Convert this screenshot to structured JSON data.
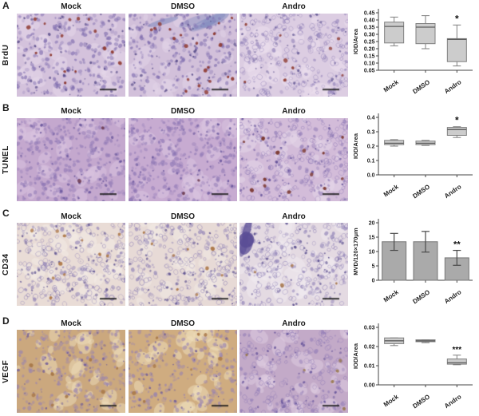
{
  "figure": {
    "panels": [
      {
        "letter": "A",
        "row_label": "BrdU",
        "columns": [
          "Mock",
          "DMSO",
          "Andro"
        ],
        "images": [
          {
            "bg": "#d4c2dc",
            "patch": "#e6d8ea",
            "nucleus": "#7e6cae",
            "dark": "#4f4383",
            "accent": "#8f3a32",
            "accents": 16,
            "density": 260,
            "ring": false,
            "streaks": false,
            "blob": ""
          },
          {
            "bg": "#d2c0da",
            "patch": "#e2d4e7",
            "nucleus": "#7a68ac",
            "dark": "#4a3f80",
            "accent": "#8f3a32",
            "accents": 21,
            "density": 260,
            "ring": false,
            "streaks": true,
            "blob": ""
          },
          {
            "bg": "#dccde2",
            "patch": "#ebe0ee",
            "nucleus": "#8b7bb5",
            "dark": "#5a4f8e",
            "accent": "#93443c",
            "accents": 9,
            "density": 250,
            "ring": true,
            "streaks": false,
            "blob": ""
          }
        ]
      },
      {
        "letter": "B",
        "row_label": "TUNEL",
        "columns": [
          "Mock",
          "DMSO",
          "Andro"
        ],
        "images": [
          {
            "bg": "#c4a8ce",
            "patch": "#d9c4df",
            "nucleus": "#8d76b4",
            "dark": "#5e4c96",
            "accent": "#6d3b50",
            "accents": 2,
            "density": 340,
            "ring": false,
            "streaks": false,
            "blob": ""
          },
          {
            "bg": "#c7abd1",
            "patch": "#dbc7e1",
            "nucleus": "#8d76b4",
            "dark": "#5e4c96",
            "accent": "#6d3b50",
            "accents": 2,
            "density": 340,
            "ring": false,
            "streaks": false,
            "blob": ""
          },
          {
            "bg": "#d3bcd9",
            "patch": "#e6d8e9",
            "nucleus": "#8f7ab6",
            "dark": "#5f4d97",
            "accent": "#7c3a33",
            "accents": 13,
            "density": 300,
            "ring": true,
            "streaks": false,
            "blob": ""
          }
        ]
      },
      {
        "letter": "C",
        "row_label": "CD34",
        "columns": [
          "Mock",
          "DMSO",
          "Andro"
        ],
        "images": [
          {
            "bg": "#e9dcd6",
            "patch": "#f4ece6",
            "nucleus": "#8678b2",
            "dark": "#564a8c",
            "accent": "#b07c4e",
            "accents": 11,
            "density": 280,
            "ring": true,
            "streaks": false,
            "blob": ""
          },
          {
            "bg": "#e7dad6",
            "patch": "#f2eae3",
            "nucleus": "#8678b2",
            "dark": "#564a8c",
            "accent": "#ad7a4c",
            "accents": 9,
            "density": 280,
            "ring": true,
            "streaks": false,
            "blob": ""
          },
          {
            "bg": "#e4dae2",
            "patch": "#f0e9ef",
            "nucleus": "#8a7cb4",
            "dark": "#4a3e85",
            "accent": "#a8784e",
            "accents": 4,
            "density": 280,
            "ring": true,
            "streaks": false,
            "blob": "#5a4d95"
          }
        ]
      },
      {
        "letter": "D",
        "row_label": "VEGF",
        "columns": [
          "Mock",
          "DMSO",
          "Andro"
        ],
        "images": [
          {
            "bg": "#cba87e",
            "patch": "#eedebc",
            "nucleus": "#9580b2",
            "dark": "#6b5898",
            "accent": "#a87848",
            "accents": 8,
            "density": 240,
            "ring": false,
            "streaks": false,
            "blob": ""
          },
          {
            "bg": "#cfac80",
            "patch": "#f0e0be",
            "nucleus": "#9580b2",
            "dark": "#6b5898",
            "accent": "#aa7a4a",
            "accents": 8,
            "density": 240,
            "ring": false,
            "streaks": false,
            "blob": ""
          },
          {
            "bg": "#c3aac8",
            "patch": "#dfcde2",
            "nucleus": "#8f7ab6",
            "dark": "#5f4d97",
            "accent": "#9a7a52",
            "accents": 6,
            "density": 240,
            "ring": true,
            "streaks": false,
            "blob": ""
          }
        ]
      }
    ],
    "colors": {
      "box_fill": "#cccccc",
      "box_stroke": "#7f7f7f",
      "median": "#5e5e5e",
      "bar_fill": "#aaaaaa",
      "bar_stroke": "#777777",
      "error_bar": "#4a4a4a",
      "axis": "#444444",
      "scale_bar": "#1a1a1a"
    }
  },
  "chart_data": [
    {
      "type": "box",
      "panel": "A",
      "title": "",
      "xlabel": "",
      "ylabel": "IOD/Area",
      "categories": [
        "Mock",
        "DMSO",
        "Andro"
      ],
      "ylim": [
        0.05,
        0.45
      ],
      "yticks": [
        "0.05",
        "0.10",
        "0.15",
        "0.20",
        "0.25",
        "0.30",
        "0.35",
        "0.40",
        "0.45"
      ],
      "series": [
        {
          "name": "Mock",
          "low": 0.22,
          "q1": 0.24,
          "median": 0.355,
          "q3": 0.385,
          "high": 0.42,
          "sig": ""
        },
        {
          "name": "DMSO",
          "low": 0.2,
          "q1": 0.235,
          "median": 0.35,
          "q3": 0.375,
          "high": 0.43,
          "sig": ""
        },
        {
          "name": "Andro",
          "low": 0.08,
          "q1": 0.11,
          "median": 0.265,
          "q3": 0.27,
          "high": 0.365,
          "sig": "*"
        }
      ]
    },
    {
      "type": "box",
      "panel": "B",
      "title": "",
      "xlabel": "",
      "ylabel": "IOD/Area",
      "categories": [
        "Mock",
        "DMSO",
        "Andro"
      ],
      "ylim": [
        0.0,
        0.4
      ],
      "yticks": [
        "0.0",
        "0.1",
        "0.2",
        "0.3",
        "0.4"
      ],
      "series": [
        {
          "name": "Mock",
          "low": 0.2,
          "q1": 0.21,
          "median": 0.22,
          "q3": 0.24,
          "high": 0.245,
          "sig": ""
        },
        {
          "name": "DMSO",
          "low": 0.205,
          "q1": 0.21,
          "median": 0.22,
          "q3": 0.235,
          "high": 0.24,
          "sig": ""
        },
        {
          "name": "Andro",
          "low": 0.26,
          "q1": 0.275,
          "median": 0.315,
          "q3": 0.33,
          "high": 0.335,
          "sig": "*"
        }
      ]
    },
    {
      "type": "bar",
      "panel": "C",
      "title": "",
      "xlabel": "",
      "ylabel": "MVD/120×170μm",
      "categories": [
        "Mock",
        "DMSO",
        "Andro"
      ],
      "ylim": [
        0,
        20
      ],
      "yticks": [
        "0",
        "5",
        "10",
        "15",
        "20"
      ],
      "series": [
        {
          "name": "Mock",
          "value": 13.4,
          "err_low": 10.4,
          "err_high": 16.3,
          "sig": ""
        },
        {
          "name": "DMSO",
          "value": 13.4,
          "err_low": 9.8,
          "err_high": 17.0,
          "sig": ""
        },
        {
          "name": "Andro",
          "value": 7.8,
          "err_low": 5.2,
          "err_high": 10.4,
          "sig": "**"
        }
      ]
    },
    {
      "type": "box",
      "panel": "D",
      "title": "",
      "xlabel": "",
      "ylabel": "IOD/Area",
      "categories": [
        "Mock",
        "DMSO",
        "Andro"
      ],
      "ylim": [
        0.0,
        0.03
      ],
      "yticks": [
        "0.00",
        "0.01",
        "0.02",
        "0.03"
      ],
      "series": [
        {
          "name": "Mock",
          "low": 0.0205,
          "q1": 0.0215,
          "median": 0.023,
          "q3": 0.0245,
          "high": 0.0245,
          "sig": ""
        },
        {
          "name": "DMSO",
          "low": 0.022,
          "q1": 0.0225,
          "median": 0.023,
          "q3": 0.0235,
          "high": 0.0235,
          "sig": ""
        },
        {
          "name": "Andro",
          "low": 0.0105,
          "q1": 0.0108,
          "median": 0.0115,
          "q3": 0.0135,
          "high": 0.0155,
          "sig": "***"
        }
      ]
    }
  ]
}
